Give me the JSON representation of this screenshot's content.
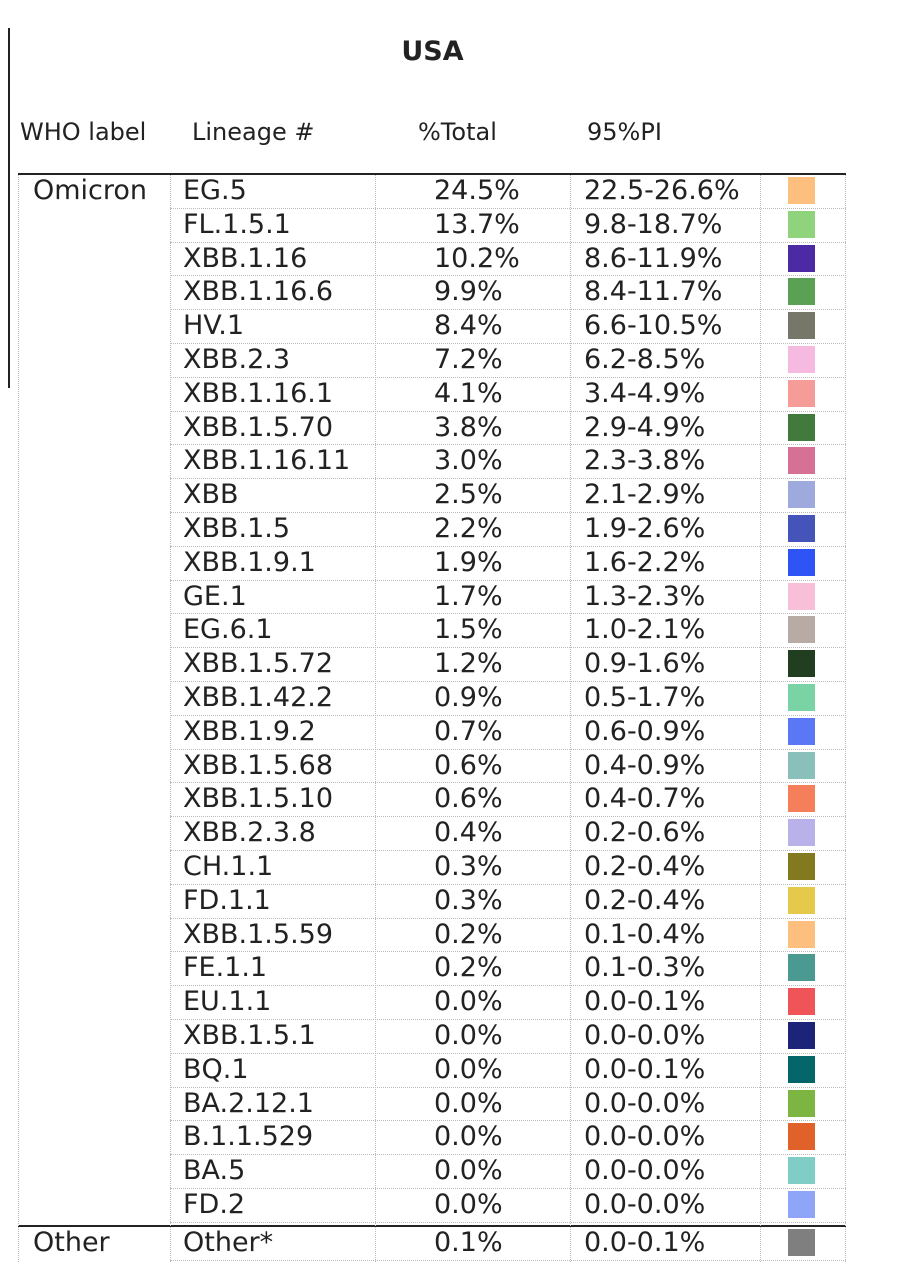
{
  "title": "USA",
  "table": {
    "headers": [
      "WHO label",
      "Lineage #",
      "%Total",
      "95%PI"
    ],
    "groups": [
      {
        "label": "Omicron",
        "rows": [
          {
            "lineage": "EG.5",
            "total": "24.5%",
            "pi": "22.5-26.6%",
            "color": "#fdbf7e"
          },
          {
            "lineage": "FL.1.5.1",
            "total": "13.7%",
            "pi": "9.8-18.7%",
            "color": "#8fd47c"
          },
          {
            "lineage": "XBB.1.16",
            "total": "10.2%",
            "pi": "8.6-11.9%",
            "color": "#4b2aa3"
          },
          {
            "lineage": "XBB.1.16.6",
            "total": "9.9%",
            "pi": "8.4-11.7%",
            "color": "#5aa153"
          },
          {
            "lineage": "HV.1",
            "total": "8.4%",
            "pi": "6.6-10.5%",
            "color": "#777769"
          },
          {
            "lineage": "XBB.2.3",
            "total": "7.2%",
            "pi": "6.2-8.5%",
            "color": "#f6b9e0"
          },
          {
            "lineage": "XBB.1.16.1",
            "total": "4.1%",
            "pi": "3.4-4.9%",
            "color": "#f59c98"
          },
          {
            "lineage": "XBB.1.5.70",
            "total": "3.8%",
            "pi": "2.9-4.9%",
            "color": "#417a3c"
          },
          {
            "lineage": "XBB.1.16.11",
            "total": "3.0%",
            "pi": "2.3-3.8%",
            "color": "#d67095"
          },
          {
            "lineage": "XBB",
            "total": "2.5%",
            "pi": "2.1-2.9%",
            "color": "#9ea9de"
          },
          {
            "lineage": "XBB.1.5",
            "total": "2.2%",
            "pi": "1.9-2.6%",
            "color": "#4454b8"
          },
          {
            "lineage": "XBB.1.9.1",
            "total": "1.9%",
            "pi": "1.6-2.2%",
            "color": "#2f54f5"
          },
          {
            "lineage": "GE.1",
            "total": "1.7%",
            "pi": "1.3-2.3%",
            "color": "#f9bfd9"
          },
          {
            "lineage": "EG.6.1",
            "total": "1.5%",
            "pi": "1.0-2.1%",
            "color": "#b8aba6"
          },
          {
            "lineage": "XBB.1.5.72",
            "total": "1.2%",
            "pi": "0.9-1.6%",
            "color": "#213f20"
          },
          {
            "lineage": "XBB.1.42.2",
            "total": "0.9%",
            "pi": "0.5-1.7%",
            "color": "#79d3a5"
          },
          {
            "lineage": "XBB.1.9.2",
            "total": "0.7%",
            "pi": "0.6-0.9%",
            "color": "#5a78f6"
          },
          {
            "lineage": "XBB.1.5.68",
            "total": "0.6%",
            "pi": "0.4-0.9%",
            "color": "#89c1ba"
          },
          {
            "lineage": "XBB.1.5.10",
            "total": "0.6%",
            "pi": "0.4-0.7%",
            "color": "#f57f5b"
          },
          {
            "lineage": "XBB.2.3.8",
            "total": "0.4%",
            "pi": "0.2-0.6%",
            "color": "#b8b1ea"
          },
          {
            "lineage": "CH.1.1",
            "total": "0.3%",
            "pi": "0.2-0.4%",
            "color": "#837a1f"
          },
          {
            "lineage": "FD.1.1",
            "total": "0.3%",
            "pi": "0.2-0.4%",
            "color": "#e5c94a"
          },
          {
            "lineage": "XBB.1.5.59",
            "total": "0.2%",
            "pi": "0.1-0.4%",
            "color": "#fdbf7e"
          },
          {
            "lineage": "FE.1.1",
            "total": "0.2%",
            "pi": "0.1-0.3%",
            "color": "#4a9a91"
          },
          {
            "lineage": "EU.1.1",
            "total": "0.0%",
            "pi": "0.0-0.1%",
            "color": "#ef5558"
          },
          {
            "lineage": "XBB.1.5.1",
            "total": "0.0%",
            "pi": "0.0-0.0%",
            "color": "#1b2478"
          },
          {
            "lineage": "BQ.1",
            "total": "0.0%",
            "pi": "0.0-0.1%",
            "color": "#05666a"
          },
          {
            "lineage": "BA.2.12.1",
            "total": "0.0%",
            "pi": "0.0-0.0%",
            "color": "#7db542"
          },
          {
            "lineage": "B.1.1.529",
            "total": "0.0%",
            "pi": "0.0-0.0%",
            "color": "#e1612a"
          },
          {
            "lineage": "BA.5",
            "total": "0.0%",
            "pi": "0.0-0.0%",
            "color": "#7fcdc5"
          },
          {
            "lineage": "FD.2",
            "total": "0.0%",
            "pi": "0.0-0.0%",
            "color": "#8ea5f8"
          }
        ]
      },
      {
        "label": "Other",
        "rows": [
          {
            "lineage": "Other*",
            "total": "0.1%",
            "pi": "0.0-0.1%",
            "color": "#7f7f7f"
          }
        ]
      }
    ]
  }
}
